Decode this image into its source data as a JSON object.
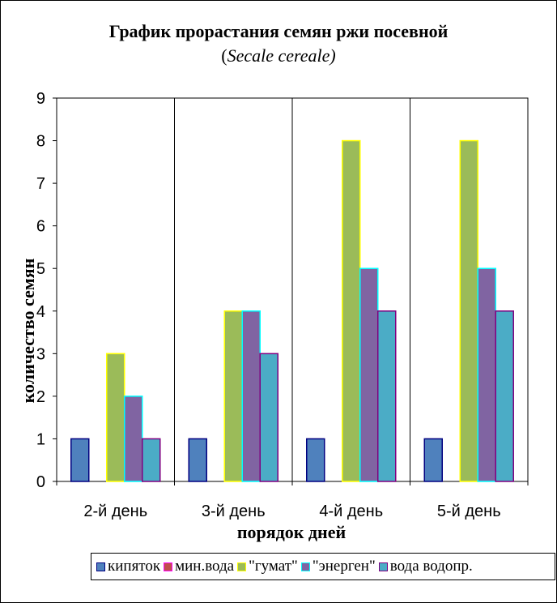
{
  "chart_data": {
    "type": "bar",
    "title": "График прорастания семян ржи посевной",
    "subtitle_prefix": "(",
    "subtitle_italic": "Secale cereale)",
    "xlabel": "порядок дней",
    "ylabel": "количество семян",
    "categories": [
      "2-й день",
      "3-й день",
      "4-й день",
      "5-й день"
    ],
    "ylim": [
      0,
      9
    ],
    "yticks": [
      "0",
      "1",
      "2",
      "3",
      "4",
      "5",
      "6",
      "7",
      "8",
      "9"
    ],
    "grid": "vertical category separators",
    "legend_position": "bottom",
    "series": [
      {
        "name": "кипяток",
        "values": [
          1,
          1,
          1,
          1
        ],
        "color": "#4f81bd",
        "border": "#000080"
      },
      {
        "name": "мин.вода",
        "values": [
          0,
          0,
          0,
          0
        ],
        "color": "#c0504d",
        "border": "#ff00ff"
      },
      {
        "name": "\"гумат\"",
        "values": [
          3,
          4,
          8,
          8
        ],
        "color": "#9bbb59",
        "border": "#ffff00"
      },
      {
        "name": "\"энерген\"",
        "values": [
          2,
          4,
          5,
          5
        ],
        "color": "#8064a2",
        "border": "#00ffff"
      },
      {
        "name": "вода водопр.",
        "values": [
          1,
          3,
          4,
          4
        ],
        "color": "#4bacc6",
        "border": "#800080"
      }
    ]
  }
}
